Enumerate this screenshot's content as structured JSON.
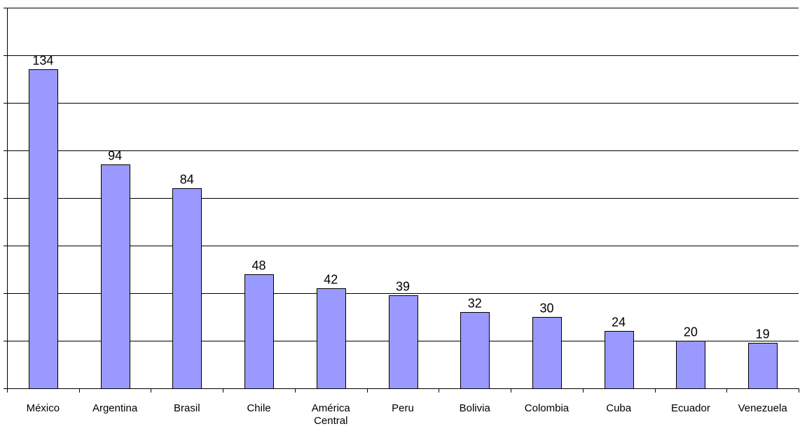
{
  "chart_data": {
    "type": "bar",
    "title": "",
    "xlabel": "",
    "ylabel": "",
    "categories": [
      "México",
      "Argentina",
      "Brasil",
      "Chile",
      "América Central",
      "Peru",
      "Bolivia",
      "Colombia",
      "Cuba",
      "Ecuador",
      "Venezuela"
    ],
    "values": [
      134,
      94,
      84,
      48,
      42,
      39,
      32,
      30,
      24,
      20,
      19
    ],
    "ylim": [
      0,
      160
    ],
    "y_gridline_step": 20,
    "grid": true,
    "y_tick_labels_visible": false,
    "legend": "none",
    "data_labels": true,
    "colors": {
      "bar_fill": "#9999FF",
      "bar_stroke": "#000000",
      "gridline": "#000000",
      "background": "#FFFFFF"
    }
  }
}
